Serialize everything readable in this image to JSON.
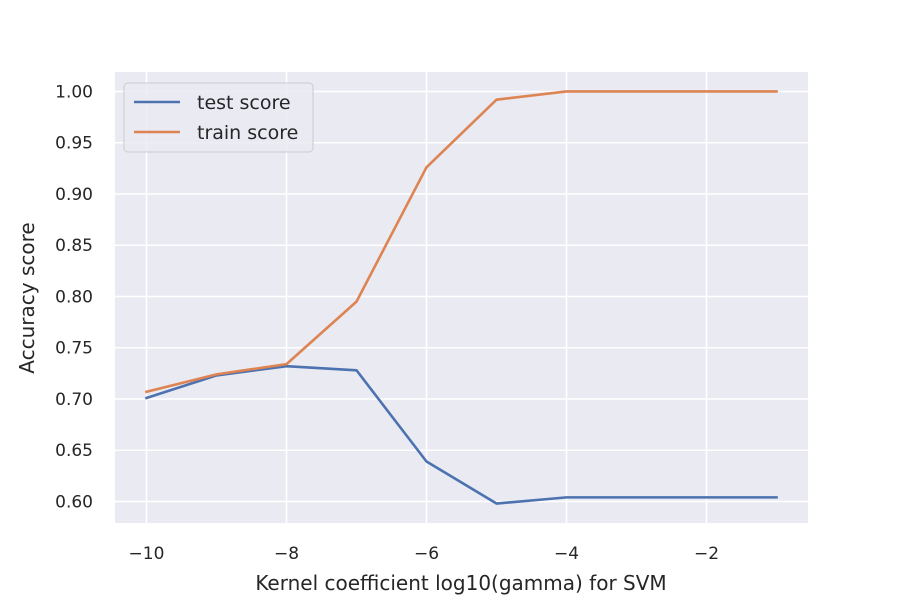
{
  "chart_data": {
    "type": "line",
    "title": "",
    "xlabel": "Kernel coefficient log10(gamma) for SVM",
    "ylabel": "Accuracy score",
    "xlim": [
      -10.45,
      -0.55
    ],
    "ylim": [
      0.579,
      1.019
    ],
    "xticks": [
      -10,
      -8,
      -6,
      -4,
      -2
    ],
    "xtick_labels": [
      "−10",
      "−8",
      "−6",
      "−4",
      "−2"
    ],
    "yticks": [
      0.6,
      0.65,
      0.7,
      0.75,
      0.8,
      0.85,
      0.9,
      0.95,
      1.0
    ],
    "ytick_labels": [
      "0.60",
      "0.65",
      "0.70",
      "0.75",
      "0.80",
      "0.85",
      "0.90",
      "0.95",
      "1.00"
    ],
    "grid": true,
    "legend_position": "top-left",
    "x": [
      -10,
      -9,
      -8,
      -7,
      -6,
      -5,
      -4,
      -3,
      -2,
      -1
    ],
    "series": [
      {
        "name": "test score",
        "color": "#4c72b0",
        "values": [
          0.701,
          0.723,
          0.732,
          0.728,
          0.639,
          0.598,
          0.604,
          0.604,
          0.604,
          0.604
        ]
      },
      {
        "name": "train score",
        "color": "#dd8452",
        "values": [
          0.707,
          0.724,
          0.734,
          0.795,
          0.926,
          0.992,
          1.0,
          1.0,
          1.0,
          1.0
        ]
      }
    ]
  }
}
